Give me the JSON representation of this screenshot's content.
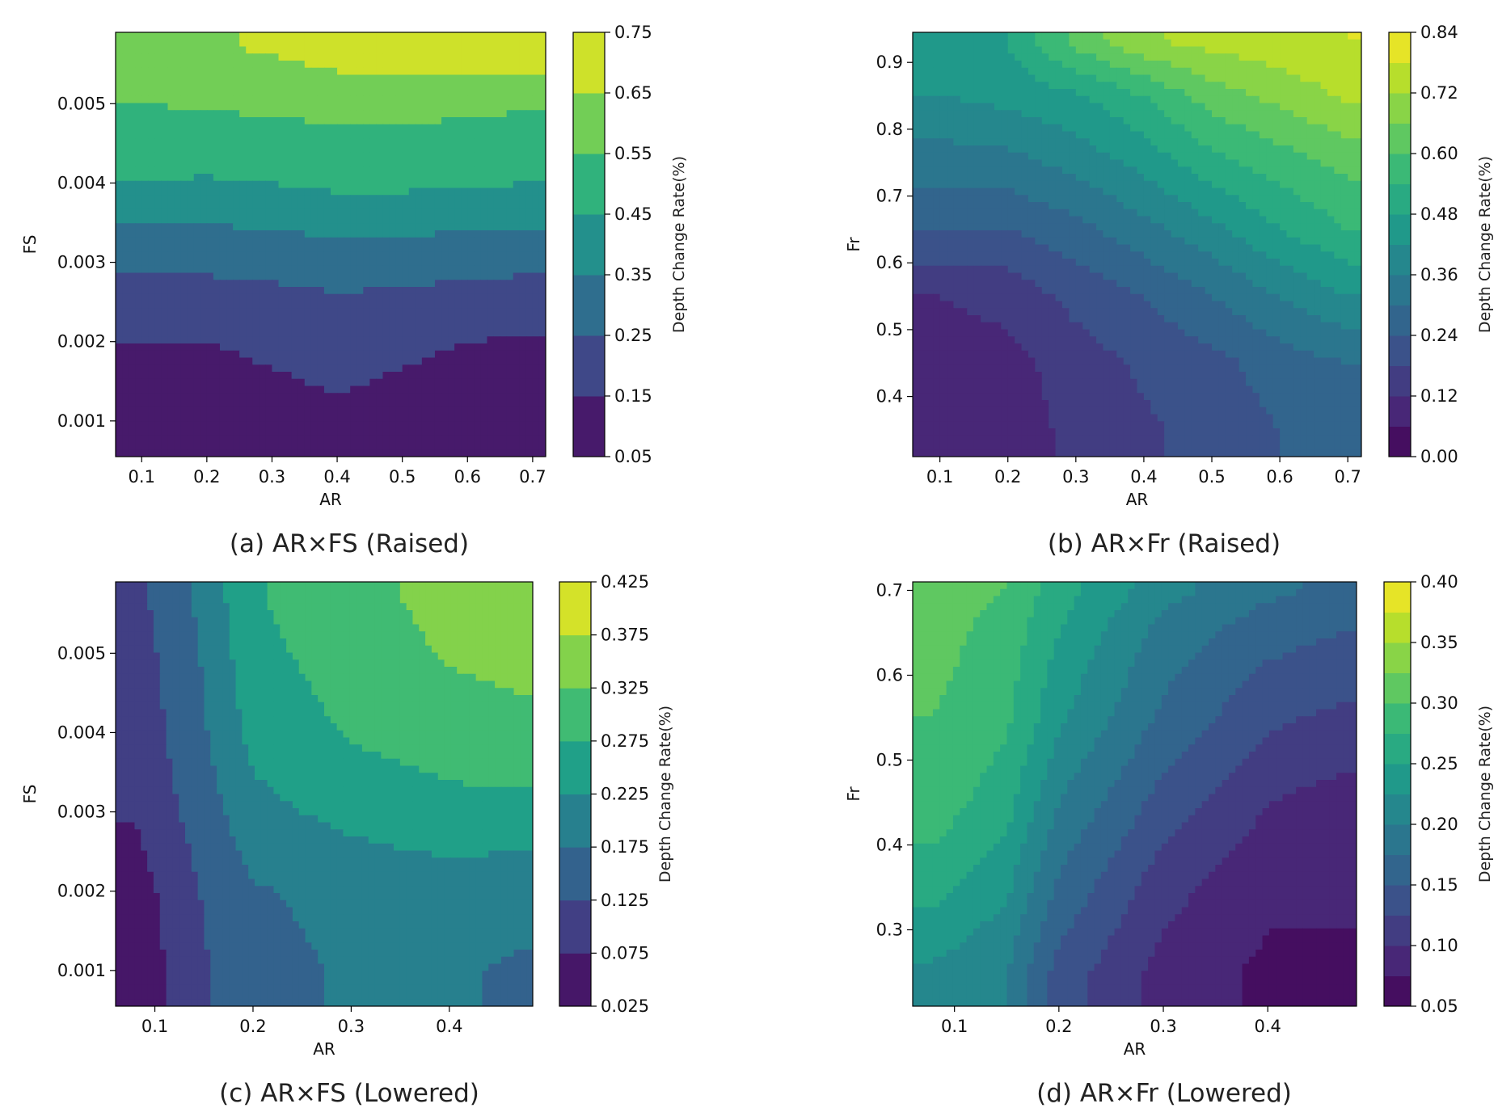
{
  "chart_data": [
    {
      "type": "heatmap",
      "subtype": "filled-contour",
      "title": "(a) AR×FS (Raised)",
      "xlabel": "AR",
      "ylabel": "FS",
      "colorbar_label": "Depth Change Rate(%)",
      "xlim": [
        0.06,
        0.72
      ],
      "ylim": [
        0.00055,
        0.0059
      ],
      "xticks": [
        0.1,
        0.2,
        0.3,
        0.4,
        0.5,
        0.6,
        0.7
      ],
      "xtick_labels": [
        "0.1",
        "0.2",
        "0.3",
        "0.4",
        "0.5",
        "0.6",
        "0.7"
      ],
      "yticks": [
        0.001,
        0.002,
        0.003,
        0.004,
        0.005
      ],
      "ytick_labels": [
        "0.001",
        "0.002",
        "0.003",
        "0.004",
        "0.005"
      ],
      "levels": [
        0.05,
        0.15,
        0.25,
        0.35,
        0.45,
        0.55,
        0.65,
        0.75
      ],
      "level_labels": [
        "0.05",
        "0.15",
        "0.25",
        "0.35",
        "0.45",
        "0.55",
        "0.65",
        "0.75"
      ],
      "grid_x": [
        0.1,
        0.2,
        0.3,
        0.4,
        0.5,
        0.6,
        0.7
      ],
      "grid_y": [
        0.001,
        0.002,
        0.003,
        0.004,
        0.005,
        0.0057
      ],
      "z": [
        [
          0.12,
          0.12,
          0.13,
          0.14,
          0.13,
          0.12,
          0.11
        ],
        [
          0.15,
          0.15,
          0.16,
          0.17,
          0.16,
          0.15,
          0.14
        ],
        [
          0.26,
          0.27,
          0.28,
          0.3,
          0.29,
          0.28,
          0.27
        ],
        [
          0.45,
          0.44,
          0.45,
          0.47,
          0.47,
          0.46,
          0.45
        ],
        [
          0.55,
          0.56,
          0.57,
          0.58,
          0.58,
          0.57,
          0.56
        ],
        [
          0.63,
          0.64,
          0.66,
          0.7,
          0.72,
          0.73,
          0.74
        ]
      ]
    },
    {
      "type": "heatmap",
      "subtype": "filled-contour",
      "title": "(b) AR×Fr (Raised)",
      "xlabel": "AR",
      "ylabel": "Fr",
      "colorbar_label": "Depth Change Rate(%)",
      "xlim": [
        0.06,
        0.72
      ],
      "ylim": [
        0.31,
        0.945
      ],
      "xticks": [
        0.1,
        0.2,
        0.3,
        0.4,
        0.5,
        0.6,
        0.7
      ],
      "xtick_labels": [
        "0.1",
        "0.2",
        "0.3",
        "0.4",
        "0.5",
        "0.6",
        "0.7"
      ],
      "yticks": [
        0.4,
        0.5,
        0.6,
        0.7,
        0.8,
        0.9
      ],
      "ytick_labels": [
        "0.4",
        "0.5",
        "0.6",
        "0.7",
        "0.8",
        "0.9"
      ],
      "levels": [
        0.0,
        0.06,
        0.12,
        0.18,
        0.24,
        0.3,
        0.36,
        0.42,
        0.48,
        0.54,
        0.6,
        0.66,
        0.72,
        0.78,
        0.84
      ],
      "level_labels": [
        "0.00",
        "0.12",
        "0.24",
        "0.36",
        "0.48",
        "0.60",
        "0.72",
        "0.84"
      ],
      "level_label_values": [
        0.0,
        0.12,
        0.24,
        0.36,
        0.48,
        0.6,
        0.72,
        0.84
      ],
      "grid_x": [
        0.1,
        0.2,
        0.3,
        0.4,
        0.5,
        0.6,
        0.7
      ],
      "grid_y": [
        0.35,
        0.45,
        0.55,
        0.65,
        0.75,
        0.85,
        0.93
      ],
      "z": [
        [
          0.07,
          0.08,
          0.14,
          0.17,
          0.2,
          0.24,
          0.26
        ],
        [
          0.09,
          0.1,
          0.15,
          0.19,
          0.22,
          0.27,
          0.3
        ],
        [
          0.12,
          0.14,
          0.2,
          0.24,
          0.3,
          0.36,
          0.42
        ],
        [
          0.24,
          0.24,
          0.28,
          0.34,
          0.4,
          0.48,
          0.54
        ],
        [
          0.33,
          0.34,
          0.38,
          0.44,
          0.52,
          0.57,
          0.62
        ],
        [
          0.42,
          0.44,
          0.47,
          0.54,
          0.63,
          0.68,
          0.73
        ],
        [
          0.44,
          0.48,
          0.62,
          0.71,
          0.74,
          0.76,
          0.78
        ]
      ]
    },
    {
      "type": "heatmap",
      "subtype": "filled-contour",
      "title": "(c) AR×FS (Lowered)",
      "xlabel": "AR",
      "ylabel": "FS",
      "colorbar_label": "Depth Change Rate(%)",
      "xlim": [
        0.06,
        0.485
      ],
      "ylim": [
        0.00055,
        0.0059
      ],
      "xticks": [
        0.1,
        0.2,
        0.3,
        0.4
      ],
      "xtick_labels": [
        "0.1",
        "0.2",
        "0.3",
        "0.4"
      ],
      "yticks": [
        0.001,
        0.002,
        0.003,
        0.004,
        0.005
      ],
      "ytick_labels": [
        "0.001",
        "0.002",
        "0.003",
        "0.004",
        "0.005"
      ],
      "levels": [
        0.025,
        0.075,
        0.125,
        0.175,
        0.225,
        0.275,
        0.325,
        0.375,
        0.425
      ],
      "level_labels": [
        "0.025",
        "0.075",
        "0.125",
        "0.175",
        "0.225",
        "0.275",
        "0.325",
        "0.375",
        "0.425"
      ],
      "grid_x": [
        0.08,
        0.15,
        0.2,
        0.3,
        0.4,
        0.47
      ],
      "grid_y": [
        0.001,
        0.002,
        0.003,
        0.004,
        0.005,
        0.0057
      ],
      "z": [
        [
          0.04,
          0.12,
          0.16,
          0.18,
          0.18,
          0.17
        ],
        [
          0.05,
          0.13,
          0.17,
          0.19,
          0.2,
          0.19
        ],
        [
          0.08,
          0.15,
          0.21,
          0.24,
          0.26,
          0.26
        ],
        [
          0.09,
          0.17,
          0.24,
          0.28,
          0.3,
          0.31
        ],
        [
          0.1,
          0.18,
          0.26,
          0.3,
          0.33,
          0.34
        ],
        [
          0.11,
          0.19,
          0.27,
          0.31,
          0.34,
          0.35
        ]
      ]
    },
    {
      "type": "heatmap",
      "subtype": "filled-contour",
      "title": "(d) AR×Fr (Lowered)",
      "xlabel": "AR",
      "ylabel": "Fr",
      "colorbar_label": "Depth Change Rate(%)",
      "xlim": [
        0.06,
        0.485
      ],
      "ylim": [
        0.21,
        0.71
      ],
      "xticks": [
        0.1,
        0.2,
        0.3,
        0.4
      ],
      "xtick_labels": [
        "0.1",
        "0.2",
        "0.3",
        "0.4"
      ],
      "yticks": [
        0.3,
        0.4,
        0.5,
        0.6,
        0.7
      ],
      "ytick_labels": [
        "0.3",
        "0.4",
        "0.5",
        "0.6",
        "0.7"
      ],
      "levels": [
        0.05,
        0.075,
        0.1,
        0.125,
        0.15,
        0.175,
        0.2,
        0.225,
        0.25,
        0.275,
        0.3,
        0.325,
        0.35,
        0.375,
        0.4
      ],
      "level_labels": [
        "0.05",
        "0.10",
        "0.15",
        "0.20",
        "0.25",
        "0.30",
        "0.35",
        "0.40"
      ],
      "level_label_values": [
        0.05,
        0.1,
        0.15,
        0.2,
        0.25,
        0.3,
        0.35,
        0.4
      ],
      "grid_x": [
        0.08,
        0.15,
        0.2,
        0.3,
        0.4,
        0.47
      ],
      "grid_y": [
        0.25,
        0.35,
        0.45,
        0.55,
        0.65,
        0.7
      ],
      "z": [
        [
          0.22,
          0.2,
          0.14,
          0.09,
          0.07,
          0.07
        ],
        [
          0.26,
          0.23,
          0.17,
          0.11,
          0.08,
          0.08
        ],
        [
          0.29,
          0.26,
          0.2,
          0.14,
          0.1,
          0.09
        ],
        [
          0.3,
          0.28,
          0.23,
          0.17,
          0.13,
          0.12
        ],
        [
          0.31,
          0.29,
          0.25,
          0.19,
          0.16,
          0.15
        ],
        [
          0.31,
          0.3,
          0.26,
          0.21,
          0.18,
          0.17
        ]
      ]
    }
  ]
}
